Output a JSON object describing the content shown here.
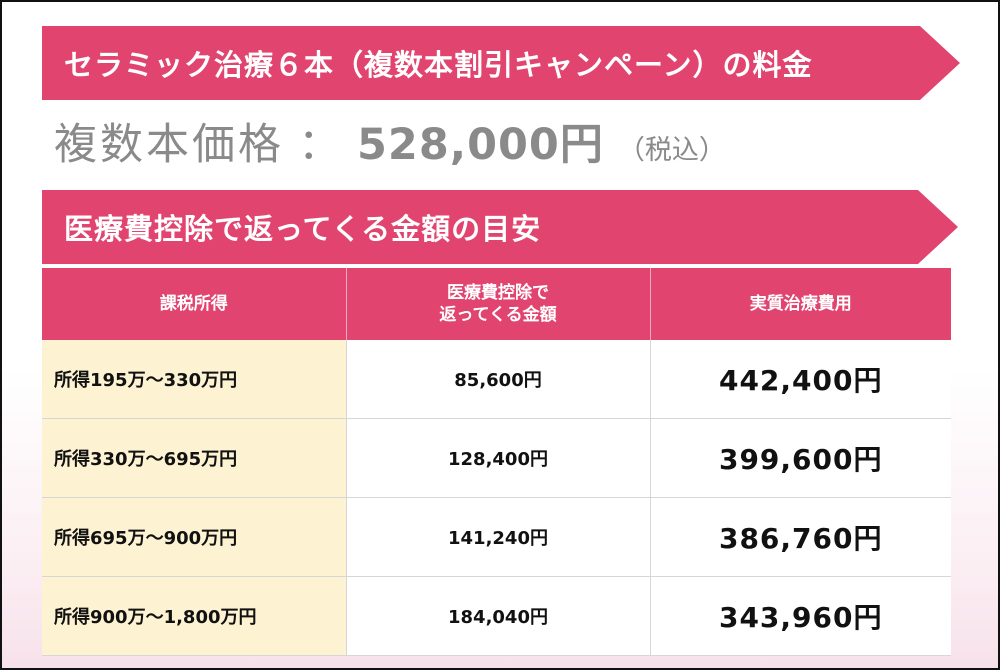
{
  "banner_campaign": "セラミック治療６本（複数本割引キャンペーン）の料金",
  "price": {
    "label": "複数本価格",
    "colon": "：",
    "amount": "528,000円",
    "tax_note": "（税込）"
  },
  "banner_refund": "医療費控除で返ってくる金額の目安",
  "table": {
    "headers": {
      "income": "課税所得",
      "refund_line1": "医療費控除で",
      "refund_line2": "返ってくる金額",
      "net": "実質治療費用"
    },
    "rows": [
      {
        "income": "所得195万〜330万円",
        "refund": "85,600円",
        "net": "442,400円"
      },
      {
        "income": "所得330万〜695万円",
        "refund": "128,400円",
        "net": "399,600円"
      },
      {
        "income": "所得695万〜900万円",
        "refund": "141,240円",
        "net": "386,760円"
      },
      {
        "income": "所得900万〜1,800万円",
        "refund": "184,040円",
        "net": "343,960円"
      }
    ]
  },
  "colors": {
    "accent": "#e1456f",
    "income_cell": "#fdf3d2",
    "price_text": "#8a8a8a"
  }
}
